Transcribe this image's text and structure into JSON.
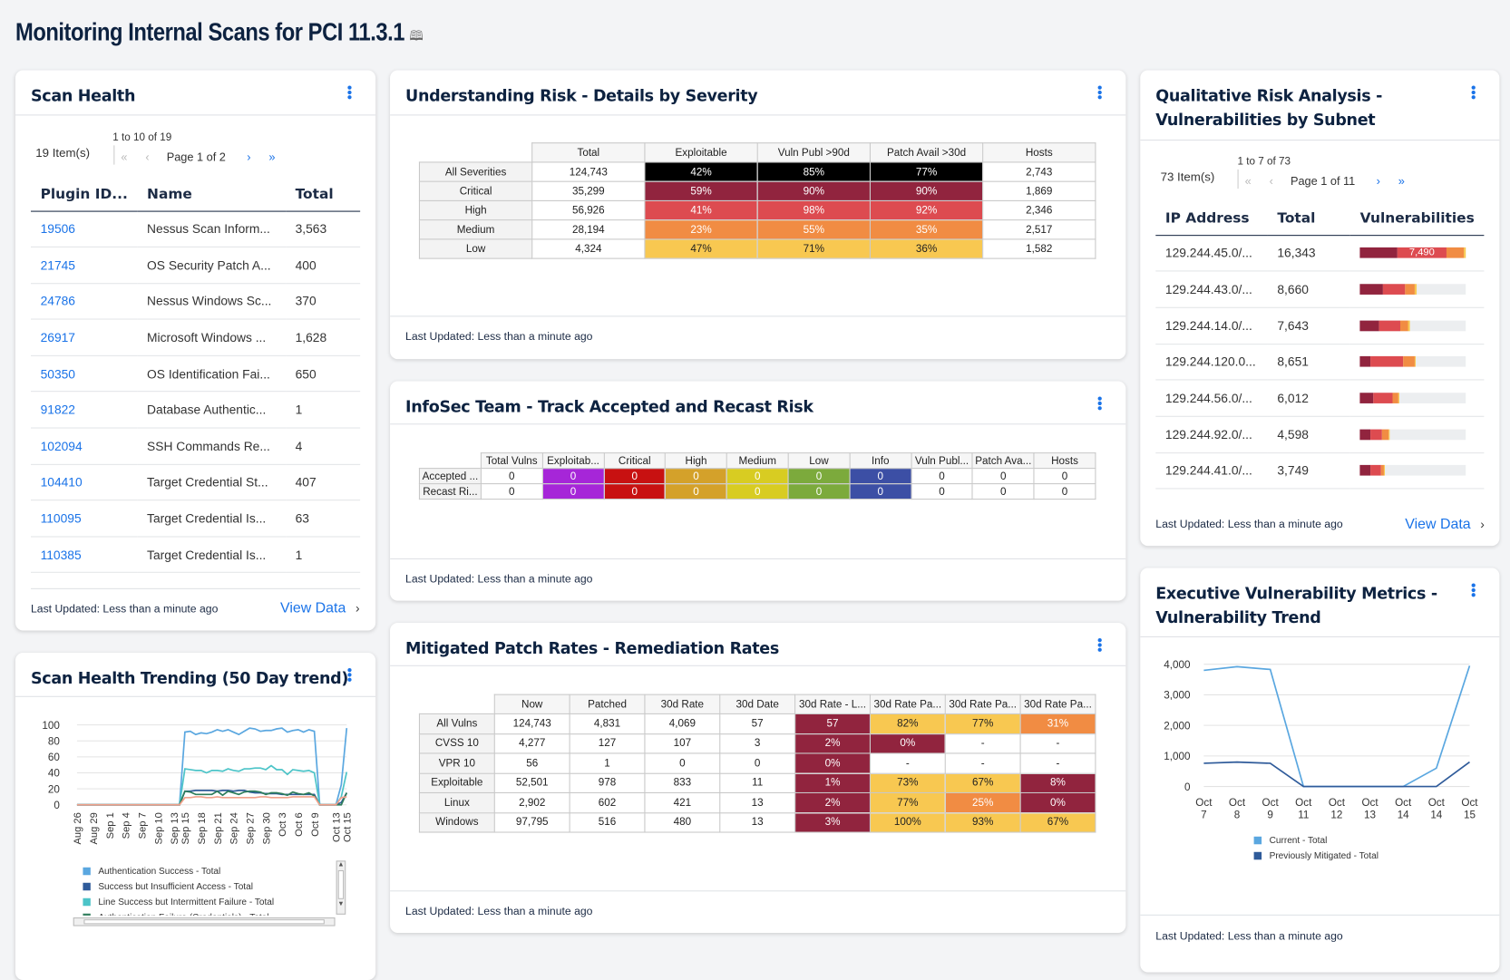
{
  "page": {
    "title": "Monitoring Internal Scans for PCI 11.3.1",
    "book_icon": "book-icon"
  },
  "common": {
    "last_updated": "Last Updated: Less than a minute ago",
    "view_data": "View Data"
  },
  "scan_health": {
    "title": "Scan Health",
    "range": "1 to 10 of 19",
    "items": "19 Item(s)",
    "page_label": "Page 1 of 2",
    "columns": [
      "Plugin ID...",
      "Name",
      "Total"
    ],
    "rows": [
      [
        "19506",
        "Nessus Scan Inform...",
        "3,563"
      ],
      [
        "21745",
        "OS Security Patch A...",
        "400"
      ],
      [
        "24786",
        "Nessus Windows Sc...",
        "370"
      ],
      [
        "26917",
        "Microsoft Windows ...",
        "1,628"
      ],
      [
        "50350",
        "OS Identification Fai...",
        "650"
      ],
      [
        "91822",
        "Database Authentic...",
        "1"
      ],
      [
        "102094",
        "SSH Commands Re...",
        "4"
      ],
      [
        "104410",
        "Target Credential St...",
        "407"
      ],
      [
        "110095",
        "Target Credential Is...",
        "63"
      ],
      [
        "110385",
        "Target Credential Is...",
        "1"
      ]
    ]
  },
  "colors": {
    "black": "#000000",
    "critical": "#91243e",
    "high": "#dd4b50",
    "medium": "#f18c43",
    "low": "#f8c851",
    "purple": "#a626d8",
    "red": "#c81111",
    "amber": "#d4a12a",
    "olive": "#d8cc22",
    "green": "#7caa3c",
    "navy": "#3c4fa5"
  },
  "understanding_risk": {
    "title": "Understanding Risk - Details by Severity",
    "columns": [
      "Total",
      "Exploitable",
      "Vuln Publ >90d",
      "Patch Avail >30d",
      "Hosts"
    ],
    "rows": [
      {
        "label": "All Severities",
        "cells": [
          {
            "v": "124,743"
          },
          {
            "v": "42%",
            "c": "black"
          },
          {
            "v": "85%",
            "c": "black"
          },
          {
            "v": "77%",
            "c": "black"
          },
          {
            "v": "2,743"
          }
        ]
      },
      {
        "label": "Critical",
        "cells": [
          {
            "v": "35,299"
          },
          {
            "v": "59%",
            "c": "critical"
          },
          {
            "v": "90%",
            "c": "critical"
          },
          {
            "v": "90%",
            "c": "critical"
          },
          {
            "v": "1,869"
          }
        ]
      },
      {
        "label": "High",
        "cells": [
          {
            "v": "56,926"
          },
          {
            "v": "41%",
            "c": "high"
          },
          {
            "v": "98%",
            "c": "high"
          },
          {
            "v": "92%",
            "c": "high"
          },
          {
            "v": "2,346"
          }
        ]
      },
      {
        "label": "Medium",
        "cells": [
          {
            "v": "28,194"
          },
          {
            "v": "23%",
            "c": "medium"
          },
          {
            "v": "55%",
            "c": "medium"
          },
          {
            "v": "35%",
            "c": "medium"
          },
          {
            "v": "2,517"
          }
        ]
      },
      {
        "label": "Low",
        "cells": [
          {
            "v": "4,324"
          },
          {
            "v": "47%",
            "c": "low"
          },
          {
            "v": "71%",
            "c": "low"
          },
          {
            "v": "36%",
            "c": "low"
          },
          {
            "v": "1,582"
          }
        ]
      }
    ]
  },
  "infosec": {
    "title": "InfoSec Team - Track Accepted and Recast Risk",
    "columns": [
      "Total Vulns",
      "Exploitab...",
      "Critical",
      "High",
      "Medium",
      "Low",
      "Info",
      "Vuln Publ...",
      "Patch Ava...",
      "Hosts"
    ],
    "rows": [
      {
        "label": "Accepted ...",
        "cells": [
          {
            "v": "0"
          },
          {
            "v": "0",
            "c": "purple"
          },
          {
            "v": "0",
            "c": "red"
          },
          {
            "v": "0",
            "c": "amber"
          },
          {
            "v": "0",
            "c": "olive"
          },
          {
            "v": "0",
            "c": "green"
          },
          {
            "v": "0",
            "c": "navy"
          },
          {
            "v": "0"
          },
          {
            "v": "0"
          },
          {
            "v": "0"
          }
        ]
      },
      {
        "label": "Recast Ri...",
        "cells": [
          {
            "v": "0"
          },
          {
            "v": "0",
            "c": "purple"
          },
          {
            "v": "0",
            "c": "red"
          },
          {
            "v": "0",
            "c": "amber"
          },
          {
            "v": "0",
            "c": "olive"
          },
          {
            "v": "0",
            "c": "green"
          },
          {
            "v": "0",
            "c": "navy"
          },
          {
            "v": "0"
          },
          {
            "v": "0"
          },
          {
            "v": "0"
          }
        ]
      }
    ]
  },
  "mitigated": {
    "title": "Mitigated Patch Rates - Remediation Rates",
    "columns": [
      "Now",
      "Patched",
      "30d Rate",
      "30d Date",
      "30d Rate - L...",
      "30d Rate Pa...",
      "30d Rate Pa...",
      "30d Rate Pa..."
    ],
    "rows": [
      {
        "label": "All Vulns",
        "cells": [
          {
            "v": "124,743"
          },
          {
            "v": "4,831"
          },
          {
            "v": "4,069"
          },
          {
            "v": "57"
          },
          {
            "v": "57",
            "c": "critical"
          },
          {
            "v": "82%",
            "c": "low"
          },
          {
            "v": "77%",
            "c": "low"
          },
          {
            "v": "31%",
            "c": "medium"
          }
        ]
      },
      {
        "label": "CVSS 10",
        "cells": [
          {
            "v": "4,277"
          },
          {
            "v": "127"
          },
          {
            "v": "107"
          },
          {
            "v": "3"
          },
          {
            "v": "2%",
            "c": "critical"
          },
          {
            "v": "0%",
            "c": "critical"
          },
          {
            "v": "-"
          },
          {
            "v": "-"
          }
        ]
      },
      {
        "label": "VPR 10",
        "cells": [
          {
            "v": "56"
          },
          {
            "v": "1"
          },
          {
            "v": "0"
          },
          {
            "v": "0"
          },
          {
            "v": "0%",
            "c": "critical"
          },
          {
            "v": "-"
          },
          {
            "v": "-"
          },
          {
            "v": "-"
          }
        ]
      },
      {
        "label": "Exploitable",
        "cells": [
          {
            "v": "52,501"
          },
          {
            "v": "978"
          },
          {
            "v": "833"
          },
          {
            "v": "11"
          },
          {
            "v": "1%",
            "c": "critical"
          },
          {
            "v": "73%",
            "c": "low"
          },
          {
            "v": "67%",
            "c": "low"
          },
          {
            "v": "8%",
            "c": "critical"
          }
        ]
      },
      {
        "label": "Linux",
        "cells": [
          {
            "v": "2,902"
          },
          {
            "v": "602"
          },
          {
            "v": "421"
          },
          {
            "v": "13"
          },
          {
            "v": "2%",
            "c": "critical"
          },
          {
            "v": "77%",
            "c": "low"
          },
          {
            "v": "25%",
            "c": "medium"
          },
          {
            "v": "0%",
            "c": "critical"
          }
        ]
      },
      {
        "label": "Windows",
        "cells": [
          {
            "v": "97,795"
          },
          {
            "v": "516"
          },
          {
            "v": "480"
          },
          {
            "v": "13"
          },
          {
            "v": "3%",
            "c": "critical"
          },
          {
            "v": "100%",
            "c": "low"
          },
          {
            "v": "93%",
            "c": "low"
          },
          {
            "v": "67%",
            "c": "low"
          }
        ]
      }
    ]
  },
  "qualitative": {
    "title_line1": "Qualitative Risk Analysis -",
    "title_line2": "Vulnerabilities by Subnet",
    "range": "1 to 7 of 73",
    "items": "73 Item(s)",
    "page_label": "Page 1 of 11",
    "columns": [
      "IP Address",
      "Total",
      "Vulnerabilities"
    ],
    "scale_max": 16343,
    "rows": [
      {
        "ip": "129.244.45.0/...",
        "total": "16,343",
        "segments": [
          5800,
          7490,
          2700,
          353
        ],
        "label": "7,490"
      },
      {
        "ip": "129.244.43.0/...",
        "total": "8,660",
        "segments": [
          3560,
          3400,
          1500,
          200
        ]
      },
      {
        "ip": "129.244.14.0/...",
        "total": "7,643",
        "segments": [
          3000,
          3150,
          1300,
          193
        ]
      },
      {
        "ip": "129.244.120.0...",
        "total": "8,651",
        "segments": [
          1650,
          5050,
          1800,
          151
        ]
      },
      {
        "ip": "129.244.56.0/...",
        "total": "6,012",
        "segments": [
          2100,
          2900,
          900,
          112
        ]
      },
      {
        "ip": "129.244.92.0/...",
        "total": "4,598",
        "segments": [
          1650,
          1700,
          1050,
          198
        ]
      },
      {
        "ip": "129.244.41.0/...",
        "total": "3,749",
        "segments": [
          1600,
          1650,
          450,
          49
        ]
      }
    ]
  },
  "trending": {
    "title": "Scan Health Trending (50 Day trend)",
    "chart_data": {
      "type": "line",
      "x_ticks": [
        "Aug 26",
        "Aug 29",
        "Sep 1",
        "Sep 4",
        "Sep 7",
        "Sep 10",
        "Sep 13",
        "Sep 15",
        "Sep 18",
        "Sep 21",
        "Sep 24",
        "Sep 27",
        "Sep 30",
        "Oct 3",
        "Oct 6",
        "Oct 9",
        "Oct 13",
        "Oct 15"
      ],
      "x_start": "Aug 26",
      "x_end": "Oct 15",
      "ylim": [
        0,
        100
      ],
      "y_ticks": [
        0,
        20,
        40,
        60,
        80,
        100
      ],
      "grid": true,
      "legend": "bottom",
      "series": [
        {
          "name": "Authentication Success - Total",
          "color": "#5aa7e0",
          "values": [
            0,
            0,
            0,
            0,
            0,
            0,
            0,
            0,
            0,
            0,
            0,
            0,
            0,
            0,
            0,
            0,
            0,
            0,
            0,
            0,
            91,
            92,
            88,
            90,
            89,
            91,
            94,
            92,
            94,
            91,
            88,
            92,
            96,
            95,
            92,
            93,
            93,
            95,
            96,
            91,
            93,
            94,
            91,
            94,
            92,
            0,
            0,
            0,
            0,
            25,
            96
          ]
        },
        {
          "name": "Success but Insufficient Access - Total",
          "color": "#2f5b9a",
          "values": [
            0,
            0,
            0,
            0,
            0,
            0,
            0,
            0,
            0,
            0,
            0,
            0,
            0,
            0,
            0,
            0,
            0,
            0,
            0,
            0,
            17,
            17,
            18,
            18,
            18,
            18,
            17,
            18,
            18,
            17,
            18,
            18,
            16,
            15,
            15,
            14,
            14,
            14,
            13,
            13,
            13,
            13,
            13,
            13,
            13,
            0,
            0,
            0,
            0,
            3,
            15
          ]
        },
        {
          "name": "Line Success but Intermittent Failure - Total",
          "color": "#4cc4c8",
          "values": [
            0,
            0,
            0,
            0,
            0,
            0,
            0,
            0,
            0,
            0,
            0,
            0,
            0,
            0,
            0,
            0,
            0,
            0,
            0,
            0,
            45,
            44,
            43,
            43,
            40,
            43,
            43,
            42,
            45,
            43,
            42,
            45,
            45,
            46,
            46,
            44,
            49,
            44,
            44,
            38,
            44,
            43,
            42,
            43,
            40,
            0,
            0,
            0,
            0,
            10,
            41
          ]
        },
        {
          "name": "Authentication Failure (Credentials) - Total",
          "color": "#2e7d5b",
          "values": [
            0,
            0,
            0,
            0,
            0,
            0,
            0,
            0,
            0,
            0,
            0,
            0,
            0,
            0,
            0,
            0,
            0,
            0,
            0,
            0,
            17,
            16,
            13,
            13,
            13,
            13,
            17,
            12,
            17,
            15,
            13,
            16,
            17,
            17,
            16,
            13,
            15,
            15,
            14,
            12,
            16,
            14,
            13,
            15,
            11,
            0,
            0,
            0,
            0,
            0,
            15
          ]
        },
        {
          "color": "#f0a08a",
          "values": [
            0,
            0,
            0,
            0,
            0,
            0,
            0,
            0,
            0,
            0,
            0,
            0,
            0,
            0,
            0,
            0,
            0,
            0,
            0,
            0,
            9,
            9,
            10,
            10,
            9,
            9,
            10,
            9,
            9,
            9,
            9,
            9,
            9,
            9,
            10,
            10,
            9,
            9,
            9,
            9,
            10,
            10,
            10,
            10,
            10,
            0,
            0,
            0,
            0,
            9,
            10
          ]
        }
      ]
    }
  },
  "exec": {
    "title_line1": "Executive Vulnerability Metrics -",
    "title_line2": "Vulnerability Trend",
    "chart_data": {
      "type": "line",
      "categories": [
        [
          "Oct",
          "7"
        ],
        [
          "Oct",
          "8"
        ],
        [
          "Oct",
          "9"
        ],
        [
          "Oct",
          "11"
        ],
        [
          "Oct",
          "12"
        ],
        [
          "Oct",
          "13"
        ],
        [
          "Oct",
          "14"
        ],
        [
          "Oct",
          "14"
        ],
        [
          "Oct",
          "15"
        ]
      ],
      "ylim": [
        0,
        4000
      ],
      "y_ticks": [
        "0",
        "1,000",
        "2,000",
        "3,000",
        "4,000"
      ],
      "grid": true,
      "legend": "bottom",
      "series": [
        {
          "name": "Current - Total",
          "color": "#5aa7e0",
          "values": [
            3800,
            3920,
            3830,
            0,
            0,
            0,
            0,
            600,
            3950
          ]
        },
        {
          "name": "Previously Mitigated - Total",
          "color": "#2f5b9a",
          "values": [
            760,
            800,
            760,
            0,
            0,
            0,
            0,
            0,
            800
          ]
        }
      ]
    }
  }
}
